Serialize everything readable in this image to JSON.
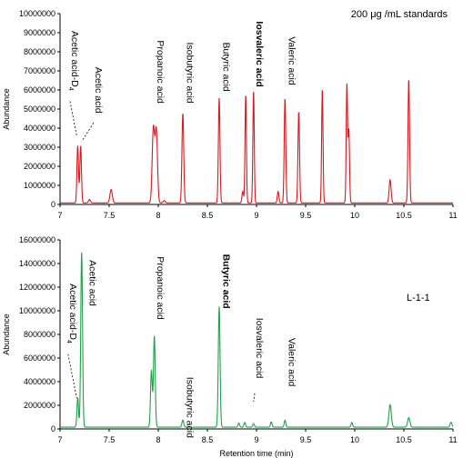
{
  "chart_data": [
    {
      "type": "line",
      "annotation": "200 μg /mL standards",
      "xlabel": "",
      "ylabel": "Abundance",
      "xlim": [
        7,
        11
      ],
      "ylim": [
        0,
        10000000
      ],
      "x_ticks": [
        7,
        7.5,
        8,
        8.5,
        9,
        9.5,
        10,
        10.5,
        11
      ],
      "y_ticks": [
        0,
        1000000,
        2000000,
        3000000,
        4000000,
        5000000,
        6000000,
        7000000,
        8000000,
        9000000,
        10000000
      ],
      "x_tick_labels": [
        "7",
        "7.5",
        "8",
        "8.5",
        "9",
        "9.5",
        "10",
        "10.5",
        "11"
      ],
      "y_tick_labels": [
        "0",
        "1000000",
        "2000000",
        "3000000",
        "4000000",
        "5000000",
        "6000000",
        "7000000",
        "8000000",
        "9000000",
        "10000000"
      ],
      "color": "#d9181e",
      "baseline": 80000,
      "peaks": [
        {
          "x": 7.18,
          "y": 3000000,
          "w": 0.008
        },
        {
          "x": 7.21,
          "y": 3000000,
          "w": 0.008
        },
        {
          "x": 7.3,
          "y": 180000,
          "w": 0.01
        },
        {
          "x": 7.52,
          "y": 700000,
          "w": 0.012
        },
        {
          "x": 7.95,
          "y": 3900000,
          "w": 0.012
        },
        {
          "x": 7.98,
          "y": 3800000,
          "w": 0.012
        },
        {
          "x": 8.06,
          "y": 120000,
          "w": 0.01
        },
        {
          "x": 8.25,
          "y": 4700000,
          "w": 0.009
        },
        {
          "x": 8.62,
          "y": 5500000,
          "w": 0.008
        },
        {
          "x": 8.86,
          "y": 600000,
          "w": 0.008
        },
        {
          "x": 8.89,
          "y": 5700000,
          "w": 0.007
        },
        {
          "x": 8.97,
          "y": 5900000,
          "w": 0.007
        },
        {
          "x": 9.22,
          "y": 600000,
          "w": 0.008
        },
        {
          "x": 9.29,
          "y": 5500000,
          "w": 0.008
        },
        {
          "x": 9.43,
          "y": 4800000,
          "w": 0.008
        },
        {
          "x": 9.67,
          "y": 6000000,
          "w": 0.007
        },
        {
          "x": 9.92,
          "y": 6200000,
          "w": 0.007
        },
        {
          "x": 9.94,
          "y": 3800000,
          "w": 0.007
        },
        {
          "x": 10.36,
          "y": 1200000,
          "w": 0.01
        },
        {
          "x": 10.55,
          "y": 6500000,
          "w": 0.008
        }
      ],
      "labels": [
        {
          "text": "Acetic acid-D",
          "sub": "4",
          "x": 7.12,
          "y": 9100000,
          "anchor": "start",
          "leader_to": [
            7.17,
            3600000
          ],
          "bold": false
        },
        {
          "text": "Acetic acid",
          "x": 7.36,
          "y": 7200000,
          "anchor": "start",
          "leader_to": [
            7.22,
            3300000
          ],
          "bold": false
        },
        {
          "text": "Propanoic acid",
          "x": 7.99,
          "y": 8600000,
          "anchor": "start",
          "bold": false
        },
        {
          "text": "Isobutyric acid",
          "x": 8.29,
          "y": 8500000,
          "anchor": "start",
          "bold": false
        },
        {
          "text": "Butyric acid",
          "x": 8.66,
          "y": 8500000,
          "anchor": "start",
          "bold": false
        },
        {
          "text": "Iosvaleric acid",
          "x": 9.0,
          "y": 9600000,
          "anchor": "start",
          "bold": true
        },
        {
          "text": "Valeric acid",
          "x": 9.33,
          "y": 8800000,
          "anchor": "start",
          "bold": false
        }
      ]
    },
    {
      "type": "line",
      "annotation": "L-1-1",
      "xlabel": "Retention time (min)",
      "ylabel": "Abundance",
      "xlim": [
        7,
        11
      ],
      "ylim": [
        0,
        16000000
      ],
      "x_ticks": [
        7,
        7.5,
        8,
        8.5,
        9,
        9.5,
        10,
        10.5,
        11
      ],
      "y_ticks": [
        0,
        2000000,
        4000000,
        6000000,
        8000000,
        10000000,
        12000000,
        14000000,
        16000000
      ],
      "x_tick_labels": [
        "7",
        "7.5",
        "8",
        "8.5",
        "9",
        "9.5",
        "10",
        "10.5",
        "11"
      ],
      "y_tick_labels": [
        "0",
        "2000000",
        "4000000",
        "6000000",
        "8000000",
        "10000000",
        "12000000",
        "14000000",
        "16000000"
      ],
      "color": "#1fa04b",
      "baseline": 150000,
      "peaks": [
        {
          "x": 7.18,
          "y": 2500000,
          "w": 0.008
        },
        {
          "x": 7.22,
          "y": 14800000,
          "w": 0.009
        },
        {
          "x": 7.93,
          "y": 4800000,
          "w": 0.009
        },
        {
          "x": 7.96,
          "y": 7700000,
          "w": 0.009
        },
        {
          "x": 8.25,
          "y": 600000,
          "w": 0.009
        },
        {
          "x": 8.62,
          "y": 10200000,
          "w": 0.009
        },
        {
          "x": 8.82,
          "y": 350000,
          "w": 0.008
        },
        {
          "x": 8.88,
          "y": 400000,
          "w": 0.008
        },
        {
          "x": 8.97,
          "y": 300000,
          "w": 0.008
        },
        {
          "x": 9.15,
          "y": 450000,
          "w": 0.008
        },
        {
          "x": 9.29,
          "y": 600000,
          "w": 0.008
        },
        {
          "x": 9.97,
          "y": 400000,
          "w": 0.008
        },
        {
          "x": 10.36,
          "y": 1900000,
          "w": 0.012
        },
        {
          "x": 10.55,
          "y": 800000,
          "w": 0.012
        },
        {
          "x": 10.98,
          "y": 400000,
          "w": 0.01
        }
      ],
      "labels": [
        {
          "text": "Acetic acid-D",
          "sub": "4",
          "x": 7.1,
          "y": 12300000,
          "anchor": "start",
          "leader_to": [
            7.17,
            2600000
          ],
          "bold": false
        },
        {
          "text": "Acetic acid",
          "x": 7.3,
          "y": 14300000,
          "anchor": "start",
          "bold": false
        },
        {
          "text": "Propanoic acid",
          "x": 7.99,
          "y": 14600000,
          "anchor": "start",
          "bold": false
        },
        {
          "text": "Isobutyric acid",
          "x": 8.29,
          "y": 4400000,
          "anchor": "start",
          "bold": false
        },
        {
          "text": "Butyric acid",
          "x": 8.66,
          "y": 14800000,
          "anchor": "start",
          "bold": true
        },
        {
          "text": "Iosvaleric acid",
          "x": 9.0,
          "y": 9400000,
          "anchor": "start",
          "leader_to": [
            8.97,
            2300000
          ],
          "bold": false
        },
        {
          "text": "Valeric acid",
          "x": 9.33,
          "y": 7700000,
          "anchor": "start",
          "bold": false
        }
      ]
    }
  ]
}
